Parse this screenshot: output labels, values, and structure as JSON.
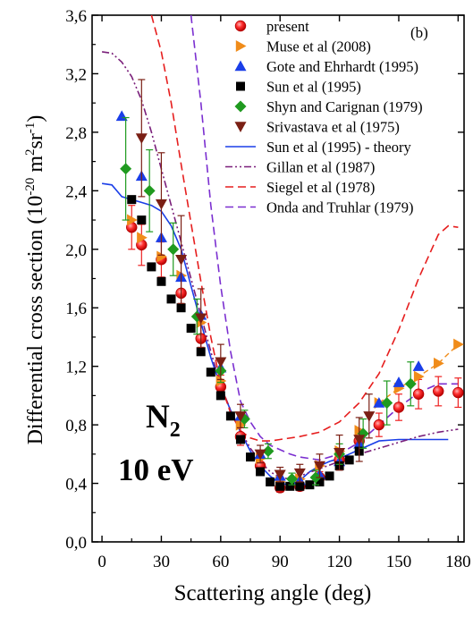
{
  "chart_data": {
    "type": "scatter",
    "panel_label": "(b)",
    "annotation_molecule": "N",
    "annotation_molecule_sub": "2",
    "annotation_energy": "10 eV",
    "xlabel": "Scattering angle (deg)",
    "ylabel_parts": [
      "Differential cross section (10",
      "-20",
      " m",
      "2",
      "sr",
      "-1",
      ")"
    ],
    "xlim": [
      -5,
      183
    ],
    "ylim": [
      0.0,
      3.6
    ],
    "xticks": [
      0,
      30,
      60,
      90,
      120,
      150,
      180
    ],
    "xtick_labels": [
      "0",
      "30",
      "60",
      "90",
      "120",
      "150",
      "180"
    ],
    "yticks": [
      0.0,
      0.4,
      0.8,
      1.2,
      1.6,
      2.0,
      2.4,
      2.8,
      3.2,
      3.6
    ],
    "ytick_labels": [
      "0,0",
      "0,4",
      "0,8",
      "1,2",
      "1,6",
      "2,0",
      "2,4",
      "2,8",
      "3,2",
      "3,6"
    ],
    "grid": false,
    "legend_position": "top-right",
    "series": [
      {
        "name": "present",
        "marker": "circle",
        "color": "#ee2222",
        "points": [
          [
            15,
            2.15
          ],
          [
            20,
            2.03
          ],
          [
            30,
            1.93
          ],
          [
            40,
            1.7
          ],
          [
            50,
            1.39
          ],
          [
            60,
            1.06
          ],
          [
            70,
            0.72
          ],
          [
            80,
            0.52
          ],
          [
            90,
            0.37
          ],
          [
            100,
            0.38
          ],
          [
            110,
            0.44
          ],
          [
            120,
            0.56
          ],
          [
            130,
            0.69
          ],
          [
            140,
            0.8
          ],
          [
            150,
            0.92
          ],
          [
            160,
            1.01
          ],
          [
            170,
            1.03
          ],
          [
            180,
            1.02
          ]
        ],
        "errors": [
          0.15,
          0.14,
          0.12,
          0.12,
          0.1,
          0.08,
          0.06,
          0.05,
          0.03,
          0.03,
          0.04,
          0.05,
          0.06,
          0.08,
          0.09,
          0.1,
          0.1,
          0.1
        ]
      },
      {
        "name": "Muse et al (2008)",
        "marker": "triangle-right",
        "color": "#f08c1a",
        "points": [
          [
            15,
            2.2
          ],
          [
            20,
            2.08
          ],
          [
            30,
            1.95
          ],
          [
            40,
            1.82
          ],
          [
            50,
            1.5
          ],
          [
            60,
            1.1
          ],
          [
            70,
            0.8
          ],
          [
            80,
            0.57
          ],
          [
            90,
            0.41
          ],
          [
            100,
            0.43
          ],
          [
            110,
            0.52
          ],
          [
            120,
            0.62
          ],
          [
            130,
            0.76
          ],
          [
            140,
            0.95
          ],
          [
            150,
            1.05
          ],
          [
            160,
            1.13
          ],
          [
            170,
            1.22
          ],
          [
            180,
            1.35
          ]
        ]
      },
      {
        "name": "Gote and Ehrhardt (1995)",
        "marker": "triangle-up",
        "color": "#1a3ee8",
        "points": [
          [
            10,
            2.91
          ],
          [
            20,
            2.5
          ],
          [
            30,
            2.08
          ],
          [
            40,
            1.81
          ],
          [
            50,
            1.55
          ],
          [
            60,
            1.19
          ],
          [
            70,
            0.86
          ],
          [
            80,
            0.6
          ],
          [
            90,
            0.45
          ],
          [
            100,
            0.42
          ],
          [
            110,
            0.46
          ],
          [
            120,
            0.55
          ],
          [
            130,
            0.67
          ],
          [
            140,
            0.95
          ],
          [
            150,
            1.09
          ],
          [
            160,
            1.2
          ]
        ]
      },
      {
        "name": "Sun et al (1995)",
        "marker": "square",
        "color": "#000000",
        "points": [
          [
            15,
            2.34
          ],
          [
            20,
            2.2
          ],
          [
            25,
            1.88
          ],
          [
            30,
            1.78
          ],
          [
            35,
            1.66
          ],
          [
            40,
            1.6
          ],
          [
            45,
            1.46
          ],
          [
            50,
            1.3
          ],
          [
            55,
            1.16
          ],
          [
            60,
            1.0
          ],
          [
            65,
            0.86
          ],
          [
            70,
            0.7
          ],
          [
            75,
            0.58
          ],
          [
            80,
            0.48
          ],
          [
            85,
            0.41
          ],
          [
            90,
            0.38
          ],
          [
            95,
            0.38
          ],
          [
            100,
            0.38
          ],
          [
            105,
            0.39
          ],
          [
            110,
            0.41
          ],
          [
            115,
            0.45
          ],
          [
            120,
            0.52
          ],
          [
            125,
            0.56
          ],
          [
            130,
            0.62
          ]
        ]
      },
      {
        "name": "Shyn and Carignan (1979)",
        "marker": "diamond",
        "color": "#1f9a1f",
        "points": [
          [
            12,
            2.55
          ],
          [
            24,
            2.4
          ],
          [
            36,
            2.0
          ],
          [
            48,
            1.54
          ],
          [
            60,
            1.17
          ],
          [
            72,
            0.84
          ],
          [
            84,
            0.62
          ],
          [
            96,
            0.43
          ],
          [
            108,
            0.44
          ],
          [
            120,
            0.6
          ],
          [
            132,
            0.74
          ],
          [
            144,
            0.95
          ],
          [
            156,
            1.08
          ]
        ],
        "errors": [
          0.35,
          0.28,
          0.18,
          0.12,
          0.08,
          0.06,
          0.05,
          0.04,
          0.05,
          0.07,
          0.1,
          0.15,
          0.15
        ]
      },
      {
        "name": "Srivastava et al (1975)",
        "marker": "triangle-down",
        "color": "#7a1f14",
        "points": [
          [
            20,
            2.76
          ],
          [
            30,
            2.31
          ],
          [
            40,
            1.93
          ],
          [
            50,
            1.53
          ],
          [
            60,
            1.23
          ],
          [
            70,
            0.86
          ],
          [
            80,
            0.6
          ],
          [
            90,
            0.46
          ],
          [
            100,
            0.47
          ],
          [
            110,
            0.52
          ],
          [
            120,
            0.61
          ],
          [
            130,
            0.7
          ],
          [
            135,
            0.86
          ]
        ],
        "errors": [
          0.4,
          0.35,
          0.3,
          0.2,
          0.12,
          0.08,
          0.06,
          0.05,
          0.06,
          0.08,
          0.12,
          0.15,
          0.15
        ]
      },
      {
        "name": "Sun et al (1995) - theory",
        "line": "solid",
        "color": "#1a3ee8",
        "points": [
          [
            0,
            2.45
          ],
          [
            5,
            2.44
          ],
          [
            10,
            2.36
          ],
          [
            15,
            2.34
          ],
          [
            20,
            2.32
          ],
          [
            25,
            2.3
          ],
          [
            30,
            2.26
          ],
          [
            35,
            2.16
          ],
          [
            40,
            2.0
          ],
          [
            45,
            1.75
          ],
          [
            50,
            1.5
          ],
          [
            55,
            1.26
          ],
          [
            60,
            1.06
          ],
          [
            65,
            0.9
          ],
          [
            70,
            0.75
          ],
          [
            75,
            0.62
          ],
          [
            80,
            0.52
          ],
          [
            85,
            0.45
          ],
          [
            90,
            0.4
          ],
          [
            95,
            0.39
          ],
          [
            100,
            0.42
          ],
          [
            105,
            0.48
          ],
          [
            110,
            0.52
          ],
          [
            115,
            0.55
          ],
          [
            120,
            0.57
          ],
          [
            125,
            0.6
          ],
          [
            130,
            0.63
          ],
          [
            135,
            0.66
          ],
          [
            140,
            0.69
          ],
          [
            150,
            0.7
          ],
          [
            165,
            0.7
          ],
          [
            175,
            0.7
          ]
        ]
      },
      {
        "name": "Gillan et al (1987)",
        "line": "dashdotdot",
        "color": "#7a1f7a",
        "points": [
          [
            0,
            3.35
          ],
          [
            5,
            3.34
          ],
          [
            10,
            3.28
          ],
          [
            15,
            3.18
          ],
          [
            20,
            3.02
          ],
          [
            25,
            2.8
          ],
          [
            30,
            2.55
          ],
          [
            35,
            2.3
          ],
          [
            40,
            2.05
          ],
          [
            45,
            1.8
          ],
          [
            50,
            1.55
          ],
          [
            55,
            1.3
          ],
          [
            60,
            1.07
          ],
          [
            65,
            0.9
          ],
          [
            70,
            0.76
          ],
          [
            75,
            0.64
          ],
          [
            80,
            0.55
          ],
          [
            85,
            0.48
          ],
          [
            90,
            0.44
          ],
          [
            95,
            0.43
          ],
          [
            100,
            0.45
          ],
          [
            110,
            0.5
          ],
          [
            120,
            0.55
          ],
          [
            130,
            0.6
          ],
          [
            140,
            0.64
          ],
          [
            150,
            0.68
          ],
          [
            160,
            0.72
          ],
          [
            170,
            0.75
          ],
          [
            180,
            0.77
          ]
        ]
      },
      {
        "name": "Siegel et al (1978)",
        "line": "dashed",
        "color": "#e61e1e",
        "points": [
          [
            25,
            3.6
          ],
          [
            30,
            3.35
          ],
          [
            35,
            3.0
          ],
          [
            40,
            2.58
          ],
          [
            45,
            2.18
          ],
          [
            50,
            1.78
          ],
          [
            55,
            1.4
          ],
          [
            60,
            1.08
          ],
          [
            65,
            0.88
          ],
          [
            70,
            0.76
          ],
          [
            75,
            0.71
          ],
          [
            80,
            0.69
          ],
          [
            85,
            0.69
          ],
          [
            90,
            0.7
          ],
          [
            100,
            0.72
          ],
          [
            110,
            0.75
          ],
          [
            120,
            0.82
          ],
          [
            130,
            0.95
          ],
          [
            140,
            1.15
          ],
          [
            150,
            1.45
          ],
          [
            160,
            1.8
          ],
          [
            170,
            2.1
          ],
          [
            175,
            2.16
          ],
          [
            180,
            2.15
          ]
        ]
      },
      {
        "name": "Onda and Truhlar (1979)",
        "line": "dashed",
        "color": "#7b2fd0",
        "points": [
          [
            45,
            3.6
          ],
          [
            50,
            3.0
          ],
          [
            55,
            2.3
          ],
          [
            60,
            1.75
          ],
          [
            65,
            1.3
          ],
          [
            70,
            0.96
          ],
          [
            75,
            0.82
          ],
          [
            80,
            0.72
          ],
          [
            85,
            0.66
          ],
          [
            90,
            0.63
          ],
          [
            95,
            0.6
          ],
          [
            100,
            0.58
          ],
          [
            110,
            0.56
          ],
          [
            120,
            0.6
          ],
          [
            130,
            0.68
          ],
          [
            140,
            0.8
          ],
          [
            150,
            0.92
          ],
          [
            160,
            1.02
          ],
          [
            170,
            1.08
          ],
          [
            180,
            1.08
          ]
        ]
      }
    ]
  }
}
